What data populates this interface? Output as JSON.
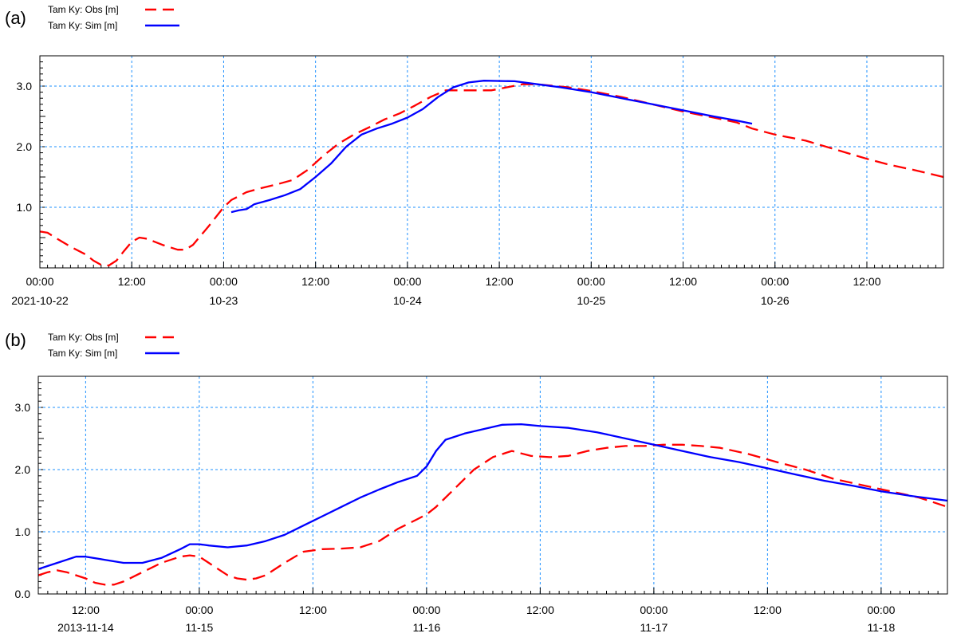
{
  "chart_data": [
    {
      "panel_label": "(a)",
      "type": "line",
      "legend_position": "top-left, outside plot",
      "grid": true,
      "ylim": [
        0,
        3.5
      ],
      "y_ticks": [
        "1.0",
        "2.0",
        "3.0"
      ],
      "y_tick_values": [
        1,
        2,
        3
      ],
      "x_range_hours": [
        0,
        118
      ],
      "x_ticks": [
        {
          "h": 0,
          "time": "00:00",
          "date": "2021-10-22"
        },
        {
          "h": 12,
          "time": "12:00",
          "date": ""
        },
        {
          "h": 24,
          "time": "00:00",
          "date": "10-23"
        },
        {
          "h": 36,
          "time": "12:00",
          "date": ""
        },
        {
          "h": 48,
          "time": "00:00",
          "date": "10-24"
        },
        {
          "h": 60,
          "time": "12:00",
          "date": ""
        },
        {
          "h": 72,
          "time": "00:00",
          "date": "10-25"
        },
        {
          "h": 84,
          "time": "12:00",
          "date": ""
        },
        {
          "h": 96,
          "time": "00:00",
          "date": "10-26"
        },
        {
          "h": 108,
          "time": "12:00",
          "date": ""
        }
      ],
      "series": [
        {
          "name": "Tam Ky: Obs [m]",
          "color": "#ff0000",
          "dash": true,
          "points": [
            [
              0,
              0.6
            ],
            [
              1,
              0.58
            ],
            [
              2,
              0.5
            ],
            [
              4,
              0.35
            ],
            [
              6,
              0.22
            ],
            [
              7,
              0.12
            ],
            [
              8,
              0.05
            ],
            [
              9,
              0.04
            ],
            [
              10,
              0.12
            ],
            [
              11,
              0.28
            ],
            [
              12,
              0.43
            ],
            [
              13,
              0.5
            ],
            [
              14,
              0.48
            ],
            [
              16,
              0.38
            ],
            [
              18,
              0.3
            ],
            [
              19,
              0.3
            ],
            [
              20,
              0.38
            ],
            [
              22,
              0.68
            ],
            [
              24,
              1.0
            ],
            [
              25,
              1.12
            ],
            [
              27,
              1.25
            ],
            [
              29,
              1.32
            ],
            [
              31,
              1.38
            ],
            [
              33,
              1.45
            ],
            [
              35,
              1.62
            ],
            [
              37,
              1.85
            ],
            [
              39,
              2.05
            ],
            [
              41,
              2.2
            ],
            [
              43,
              2.32
            ],
            [
              45,
              2.45
            ],
            [
              47,
              2.55
            ],
            [
              49,
              2.68
            ],
            [
              51,
              2.82
            ],
            [
              53,
              2.93
            ],
            [
              56,
              2.93
            ],
            [
              59,
              2.93
            ],
            [
              61,
              2.98
            ],
            [
              63,
              3.03
            ],
            [
              65,
              3.03
            ],
            [
              69,
              2.98
            ],
            [
              72,
              2.92
            ],
            [
              76,
              2.82
            ],
            [
              80,
              2.7
            ],
            [
              84,
              2.58
            ],
            [
              88,
              2.48
            ],
            [
              91,
              2.4
            ],
            [
              93,
              2.3
            ],
            [
              96,
              2.2
            ],
            [
              100,
              2.1
            ],
            [
              104,
              1.95
            ],
            [
              108,
              1.8
            ],
            [
              111,
              1.7
            ],
            [
              114,
              1.62
            ],
            [
              118,
              1.5
            ]
          ]
        },
        {
          "name": "Tam Ky: Sim [m]",
          "color": "#0000ff",
          "dash": false,
          "points": [
            [
              25,
              0.92
            ],
            [
              26,
              0.95
            ],
            [
              27,
              0.97
            ],
            [
              28,
              1.05
            ],
            [
              30,
              1.12
            ],
            [
              32,
              1.2
            ],
            [
              34,
              1.3
            ],
            [
              36,
              1.5
            ],
            [
              38,
              1.72
            ],
            [
              40,
              2.0
            ],
            [
              42,
              2.2
            ],
            [
              44,
              2.3
            ],
            [
              46,
              2.38
            ],
            [
              48,
              2.48
            ],
            [
              50,
              2.62
            ],
            [
              52,
              2.82
            ],
            [
              54,
              2.98
            ],
            [
              56,
              3.06
            ],
            [
              58,
              3.09
            ],
            [
              62,
              3.08
            ],
            [
              65,
              3.03
            ],
            [
              68,
              2.98
            ],
            [
              72,
              2.9
            ],
            [
              76,
              2.8
            ],
            [
              80,
              2.7
            ],
            [
              84,
              2.6
            ],
            [
              88,
              2.5
            ],
            [
              91,
              2.43
            ],
            [
              93,
              2.38
            ]
          ]
        }
      ]
    },
    {
      "panel_label": "(b)",
      "type": "line",
      "legend_position": "top-left, outside plot",
      "grid": true,
      "ylim": [
        0,
        3.5
      ],
      "y_ticks": [
        "0.0",
        "1.0",
        "2.0",
        "3.0"
      ],
      "y_tick_values": [
        0,
        1,
        2,
        3
      ],
      "x_range_hours": [
        0,
        96
      ],
      "x_ticks": [
        {
          "h": 5,
          "time": "12:00",
          "date": "2013-11-14"
        },
        {
          "h": 17,
          "time": "00:00",
          "date": "11-15"
        },
        {
          "h": 29,
          "time": "12:00",
          "date": ""
        },
        {
          "h": 41,
          "time": "00:00",
          "date": "11-16"
        },
        {
          "h": 53,
          "time": "12:00",
          "date": ""
        },
        {
          "h": 65,
          "time": "00:00",
          "date": "11-17"
        },
        {
          "h": 77,
          "time": "12:00",
          "date": ""
        },
        {
          "h": 89,
          "time": "00:00",
          "date": "11-18"
        }
      ],
      "series": [
        {
          "name": "Tam Ky: Obs [m]",
          "color": "#ff0000",
          "dash": true,
          "points": [
            [
              0,
              0.3
            ],
            [
              1,
              0.35
            ],
            [
              2,
              0.38
            ],
            [
              3,
              0.35
            ],
            [
              4,
              0.3
            ],
            [
              5,
              0.25
            ],
            [
              6,
              0.18
            ],
            [
              7,
              0.15
            ],
            [
              8,
              0.15
            ],
            [
              9,
              0.2
            ],
            [
              11,
              0.35
            ],
            [
              13,
              0.5
            ],
            [
              15,
              0.6
            ],
            [
              16,
              0.62
            ],
            [
              17,
              0.6
            ],
            [
              18,
              0.5
            ],
            [
              19,
              0.4
            ],
            [
              20,
              0.3
            ],
            [
              21,
              0.25
            ],
            [
              22,
              0.23
            ],
            [
              23,
              0.25
            ],
            [
              24,
              0.3
            ],
            [
              26,
              0.5
            ],
            [
              28,
              0.68
            ],
            [
              30,
              0.72
            ],
            [
              32,
              0.73
            ],
            [
              34,
              0.75
            ],
            [
              36,
              0.85
            ],
            [
              38,
              1.05
            ],
            [
              40,
              1.2
            ],
            [
              41,
              1.28
            ],
            [
              42,
              1.4
            ],
            [
              44,
              1.7
            ],
            [
              46,
              2.0
            ],
            [
              48,
              2.2
            ],
            [
              50,
              2.3
            ],
            [
              52,
              2.22
            ],
            [
              54,
              2.2
            ],
            [
              56,
              2.22
            ],
            [
              58,
              2.3
            ],
            [
              60,
              2.35
            ],
            [
              62,
              2.38
            ],
            [
              64,
              2.38
            ],
            [
              66,
              2.4
            ],
            [
              68,
              2.4
            ],
            [
              70,
              2.38
            ],
            [
              72,
              2.35
            ],
            [
              75,
              2.25
            ],
            [
              78,
              2.12
            ],
            [
              81,
              2.0
            ],
            [
              84,
              1.85
            ],
            [
              87,
              1.75
            ],
            [
              90,
              1.65
            ],
            [
              93,
              1.55
            ],
            [
              96,
              1.4
            ]
          ]
        },
        {
          "name": "Tam Ky: Sim [m]",
          "color": "#0000ff",
          "dash": false,
          "points": [
            [
              0,
              0.4
            ],
            [
              1,
              0.45
            ],
            [
              2,
              0.5
            ],
            [
              4,
              0.6
            ],
            [
              5,
              0.6
            ],
            [
              7,
              0.55
            ],
            [
              9,
              0.5
            ],
            [
              11,
              0.5
            ],
            [
              13,
              0.58
            ],
            [
              15,
              0.72
            ],
            [
              16,
              0.8
            ],
            [
              17,
              0.8
            ],
            [
              18,
              0.78
            ],
            [
              20,
              0.75
            ],
            [
              22,
              0.78
            ],
            [
              24,
              0.85
            ],
            [
              26,
              0.95
            ],
            [
              28,
              1.1
            ],
            [
              30,
              1.25
            ],
            [
              32,
              1.4
            ],
            [
              34,
              1.55
            ],
            [
              36,
              1.68
            ],
            [
              38,
              1.8
            ],
            [
              40,
              1.9
            ],
            [
              41,
              2.05
            ],
            [
              42,
              2.3
            ],
            [
              43,
              2.48
            ],
            [
              45,
              2.58
            ],
            [
              47,
              2.65
            ],
            [
              49,
              2.72
            ],
            [
              51,
              2.73
            ],
            [
              53,
              2.7
            ],
            [
              56,
              2.67
            ],
            [
              59,
              2.6
            ],
            [
              62,
              2.5
            ],
            [
              65,
              2.4
            ],
            [
              68,
              2.3
            ],
            [
              71,
              2.2
            ],
            [
              74,
              2.12
            ],
            [
              77,
              2.02
            ],
            [
              80,
              1.92
            ],
            [
              83,
              1.82
            ],
            [
              86,
              1.74
            ],
            [
              89,
              1.65
            ],
            [
              92,
              1.58
            ],
            [
              96,
              1.5
            ]
          ]
        }
      ]
    }
  ]
}
